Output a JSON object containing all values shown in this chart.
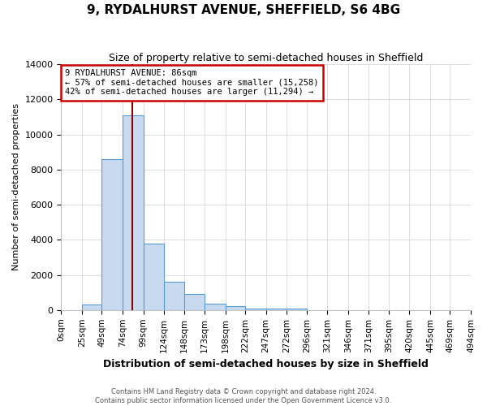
{
  "title": "9, RYDALHURST AVENUE, SHEFFIELD, S6 4BG",
  "subtitle": "Size of property relative to semi-detached houses in Sheffield",
  "xlabel": "Distribution of semi-detached houses by size in Sheffield",
  "ylabel": "Number of semi-detached properties",
  "footnote": "Contains HM Land Registry data © Crown copyright and database right 2024.\nContains public sector information licensed under the Open Government Licence v3.0.",
  "bin_edges": [
    0,
    25,
    49,
    74,
    99,
    124,
    148,
    173,
    198,
    222,
    247,
    272,
    296,
    321,
    346,
    371,
    395,
    420,
    445,
    469,
    494
  ],
  "bin_labels": [
    "0sqm",
    "25sqm",
    "49sqm",
    "74sqm",
    "99sqm",
    "124sqm",
    "148sqm",
    "173sqm",
    "198sqm",
    "222sqm",
    "247sqm",
    "272sqm",
    "296sqm",
    "321sqm",
    "346sqm",
    "371sqm",
    "395sqm",
    "420sqm",
    "445sqm",
    "469sqm",
    "494sqm"
  ],
  "bar_heights": [
    0,
    300,
    8600,
    11100,
    3800,
    1600,
    900,
    350,
    200,
    100,
    100,
    100,
    0,
    0,
    0,
    0,
    0,
    0,
    0,
    0
  ],
  "bar_color": "#c8daf0",
  "bar_edge_color": "#5b9bd5",
  "property_size": 86,
  "vline_color": "#8b0000",
  "annotation_text": "9 RYDALHURST AVENUE: 86sqm\n← 57% of semi-detached houses are smaller (15,258)\n42% of semi-detached houses are larger (11,294) →",
  "annotation_box_color": "#ffffff",
  "annotation_box_edge_color": "#cc0000",
  "ylim": [
    0,
    14000
  ],
  "yticks": [
    0,
    2000,
    4000,
    6000,
    8000,
    10000,
    12000,
    14000
  ],
  "xlim": [
    0,
    494
  ],
  "background_color": "#ffffff",
  "grid_color": "#d0d0d0",
  "title_fontsize": 11,
  "subtitle_fontsize": 9,
  "ylabel_fontsize": 8,
  "xlabel_fontsize": 9,
  "tick_fontsize": 7.5,
  "ytick_fontsize": 8
}
